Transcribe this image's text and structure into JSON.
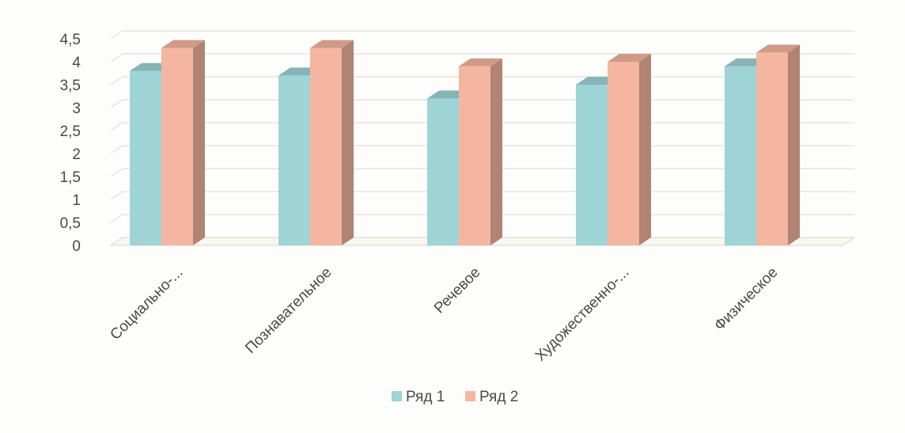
{
  "chart_data": {
    "type": "bar",
    "title": "",
    "xlabel": "",
    "ylabel": "",
    "categories": [
      "Социально-...",
      "Познавательное",
      "Речевое",
      "Художественно-...",
      "Физическое"
    ],
    "series": [
      {
        "name": "Ряд 1",
        "values": [
          3.8,
          3.7,
          3.2,
          3.5,
          3.9
        ],
        "color": "#9fd4d6"
      },
      {
        "name": "Ряд 2",
        "values": [
          4.3,
          4.3,
          3.9,
          4.0,
          4.2
        ],
        "color": "#f4b6a0"
      }
    ],
    "ylim": [
      0,
      4.5
    ],
    "y_ticks": [
      "0",
      "0,5",
      "1",
      "1,5",
      "2",
      "2,5",
      "3",
      "3,5",
      "4",
      "4,5"
    ],
    "grid": true,
    "legend_position": "bottom",
    "style": "3d-clustered-column"
  }
}
